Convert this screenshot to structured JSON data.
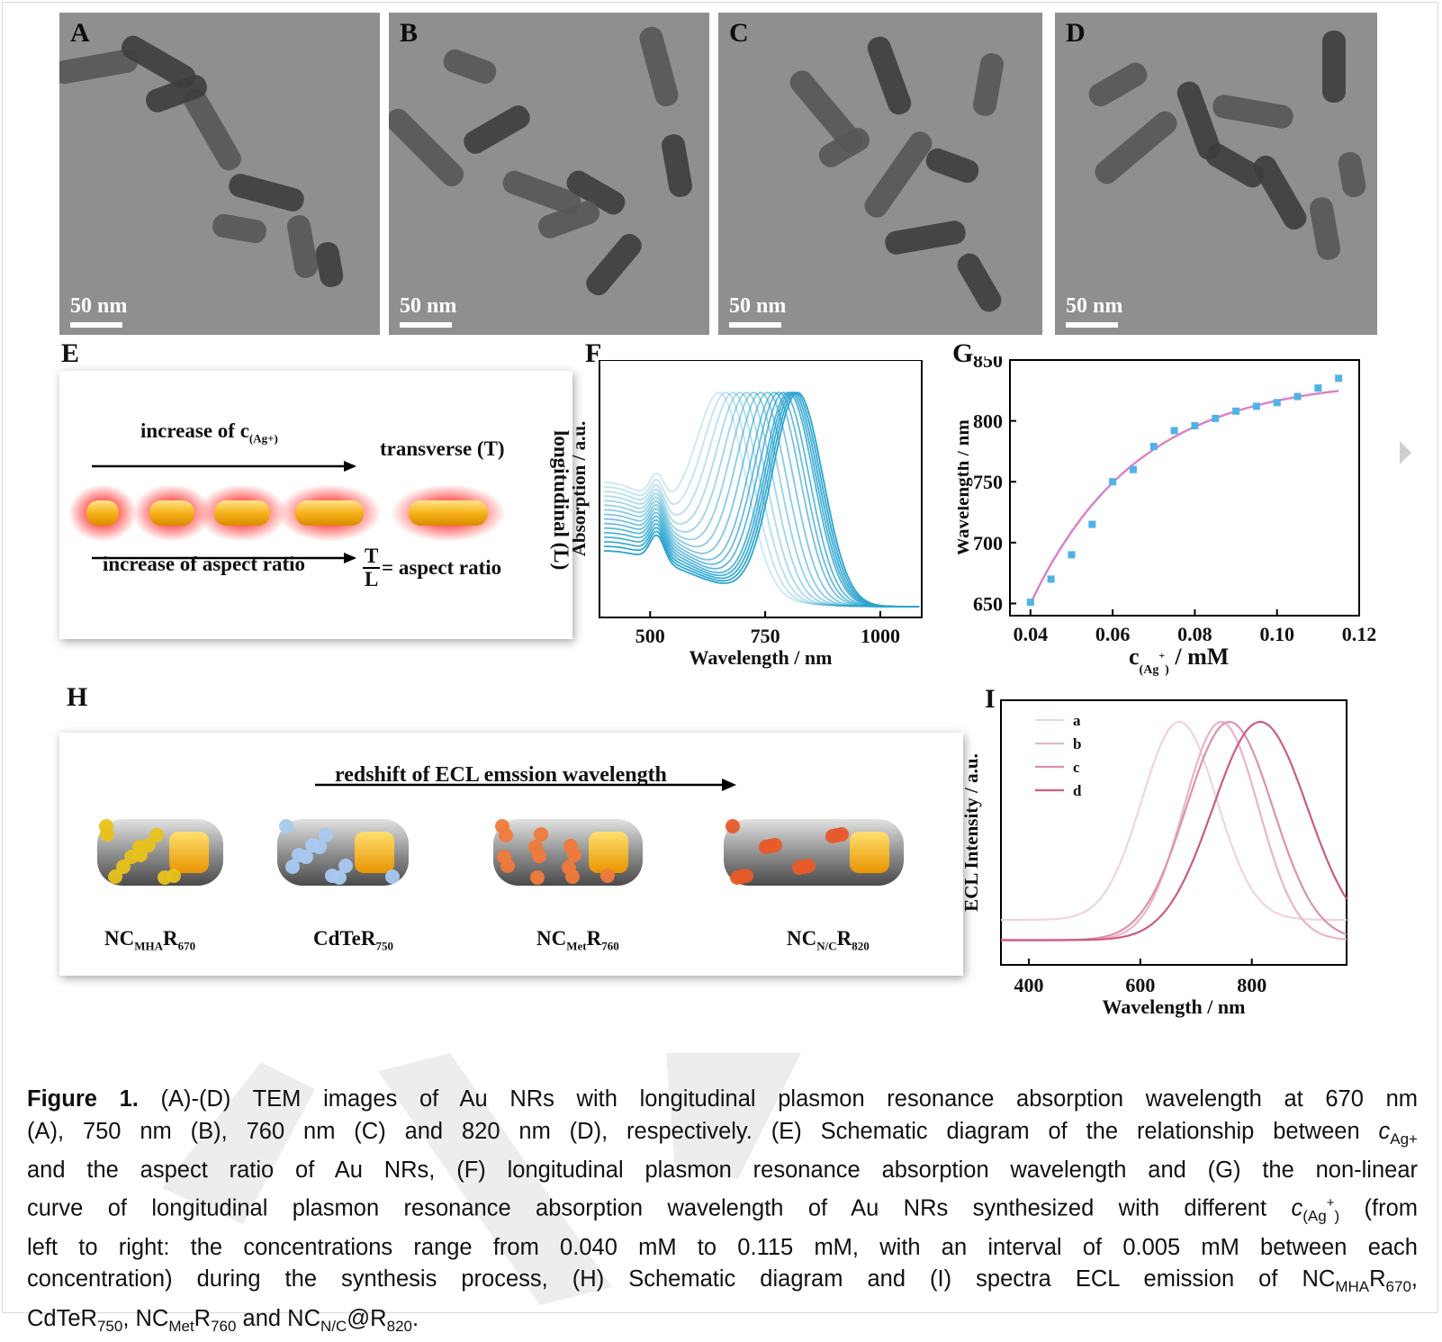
{
  "figure": {
    "tem_panels": [
      {
        "letter": "A",
        "scale_label": "50 nm"
      },
      {
        "letter": "B",
        "scale_label": "50 nm"
      },
      {
        "letter": "C",
        "scale_label": "50 nm"
      },
      {
        "letter": "D",
        "scale_label": "50 nm"
      }
    ],
    "panel_E": {
      "letter": "E",
      "top_arrow_label": "increase of c",
      "top_arrow_sub": "(Ag+)",
      "transverse_label": "transverse (T)",
      "longitudinal_label": "longitudinal (L)",
      "bottom_arrow_label": "increase of aspect ratio",
      "fraction_num": "T",
      "fraction_den": "L",
      "fraction_rest": "= aspect ratio"
    },
    "panel_F": {
      "letter": "F"
    },
    "panel_G": {
      "letter": "G"
    },
    "panel_H": {
      "letter": "H",
      "arrow_label": "redshift of ECL emssion wavelength",
      "labels": [
        {
          "main": "NC",
          "sub": "MHA",
          "main2": "R",
          "sub2": "670",
          "dot_color": "#e8c21a"
        },
        {
          "main": "CdTeR",
          "sub": "750",
          "main2": "",
          "sub2": "",
          "dot_color": "#a9c9f0"
        },
        {
          "main": "NC",
          "sub": "Met",
          "main2": "R",
          "sub2": "760",
          "dot_color": "#f07a3a"
        },
        {
          "main": "NC",
          "sub": "N/C",
          "main2": "R",
          "sub2": "820",
          "dot_color": "#e85a2a"
        }
      ]
    },
    "panel_I": {
      "letter": "I"
    }
  },
  "chart_data": [
    {
      "panel": "F",
      "type": "line",
      "xlabel": "Wavelength / nm",
      "ylabel": "Absorption / a.u.",
      "xticks": [
        500,
        750,
        1000
      ],
      "xlim": [
        390,
        1090
      ],
      "series_count": 16,
      "peak_wavelengths": [
        650,
        665,
        680,
        695,
        710,
        725,
        740,
        755,
        770,
        780,
        790,
        800,
        805,
        810,
        815,
        820
      ],
      "color": "#2aa3cf"
    },
    {
      "panel": "G",
      "type": "scatter",
      "xlabel": "c",
      "xlabel_sub": "(Ag",
      "xlabel_sup": "+",
      "xlabel_sub_end": ")",
      "xlabel_unit": "/ mM",
      "ylabel": "Wavelength / nm",
      "xticks": [
        "0.04",
        "0.06",
        "0.08",
        "0.10",
        "0.12"
      ],
      "yticks": [
        "650",
        "700",
        "750",
        "800",
        "850"
      ],
      "xlim": [
        0.035,
        0.12
      ],
      "ylim": [
        640,
        850
      ],
      "x": [
        0.04,
        0.045,
        0.05,
        0.055,
        0.06,
        0.065,
        0.07,
        0.075,
        0.08,
        0.085,
        0.09,
        0.095,
        0.1,
        0.105,
        0.11,
        0.115
      ],
      "y": [
        651,
        670,
        690,
        715,
        750,
        760,
        779,
        792,
        796,
        802,
        808,
        812,
        815,
        820,
        827,
        835
      ],
      "marker_color": "#4fb3e8",
      "fit_color": "#d97fc9"
    },
    {
      "panel": "I",
      "type": "line",
      "xlabel": "Wavelength / nm",
      "ylabel": "ECL Intensity / a.u.",
      "xticks": [
        "400",
        "600",
        "800"
      ],
      "xlim": [
        350,
        970
      ],
      "series": [
        {
          "name": "a",
          "peak": 670,
          "color": "#f1d3dc"
        },
        {
          "name": "b",
          "peak": 745,
          "color": "#eab4c6"
        },
        {
          "name": "c",
          "peak": 760,
          "color": "#dd92ad"
        },
        {
          "name": "d",
          "peak": 815,
          "color": "#cc5b83"
        }
      ]
    }
  ],
  "caption": {
    "lines": [
      {
        "parts": [
          {
            "t": "Figure 1.",
            "b": true
          },
          {
            "t": " (A)-(D) TEM images of Au NRs with longitudinal plasmon resonance absorption wavelength at 670 nm"
          }
        ]
      },
      {
        "parts": [
          {
            "t": "(A), 750 nm (B), 760 nm (C) and 820 nm (D), respectively. (E) Schematic diagram of the relationship between "
          },
          {
            "t": "c",
            "i": true
          },
          {
            "t": "Ag+",
            "sub": true
          }
        ]
      },
      {
        "parts": [
          {
            "t": "and the aspect ratio of Au NRs, (F) longitudinal plasmon resonance absorption wavelength and (G) the non-linear"
          }
        ]
      },
      {
        "parts": [
          {
            "t": "curve of longitudinal plasmon resonance absorption wavelength of Au NRs synthesized with different "
          },
          {
            "t": "c",
            "i": true
          },
          {
            "t": "(Ag",
            "sub": true
          },
          {
            "t": "+",
            "sup": true
          },
          {
            "t": ")",
            "sub": true
          },
          {
            "t": " (from"
          }
        ]
      },
      {
        "parts": [
          {
            "t": "left to right: the concentrations range from 0.040 mM to 0.115 mM, with an interval of 0.005 mM between each"
          }
        ]
      },
      {
        "parts": [
          {
            "t": "concentration) during the synthesis process, (H) Schematic diagram and (I) spectra ECL emission of NC"
          },
          {
            "t": "MHA",
            "sub": true
          },
          {
            "t": "R"
          },
          {
            "t": "670",
            "sub": true
          },
          {
            "t": ","
          }
        ]
      },
      {
        "parts": [
          {
            "t": "CdTeR"
          },
          {
            "t": "750",
            "sub": true
          },
          {
            "t": ", NC"
          },
          {
            "t": "Met",
            "sub": true
          },
          {
            "t": "R"
          },
          {
            "t": "760",
            "sub": true
          },
          {
            "t": " and NC"
          },
          {
            "t": "N/C",
            "sub": true
          },
          {
            "t": "@R"
          },
          {
            "t": "820",
            "sub": true
          },
          {
            "t": "."
          }
        ]
      }
    ]
  }
}
